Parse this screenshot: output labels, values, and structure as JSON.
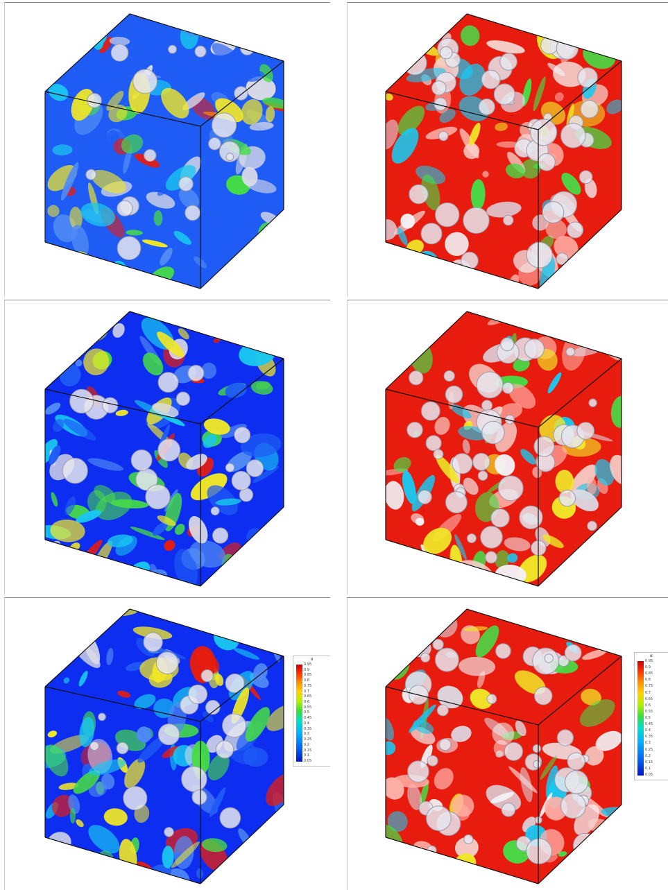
{
  "panels": [
    {
      "id": "top-left",
      "fill_level": 0.2,
      "face_base": "#1f5cf5",
      "blob_palette": "blue-dominant"
    },
    {
      "id": "top-right",
      "fill_level": 0.85,
      "face_base": "#e81c0e",
      "blob_palette": "red-dominant"
    },
    {
      "id": "middle-left",
      "fill_level": 0.3,
      "face_base": "#0d2ef0",
      "blob_palette": "blue-dominant"
    },
    {
      "id": "middle-right",
      "fill_level": 0.95,
      "face_base": "#e81c0e",
      "blob_palette": "red-dominant"
    },
    {
      "id": "bottom-left",
      "fill_level": 0.3,
      "face_base": "#0d2ef0",
      "blob_palette": "blue-dominant"
    },
    {
      "id": "bottom-right",
      "fill_level": 0.98,
      "face_base": "#e81c0e",
      "blob_palette": "red-dominant"
    }
  ],
  "colorbar_left": {
    "title": "α",
    "ticks": [
      "0.95",
      "0.9",
      "0.85",
      "0.8",
      "0.75",
      "0.7",
      "0.65",
      "0.6",
      "0.55",
      "0.5",
      "0.45",
      "0.4",
      "0.35",
      "0.3",
      "0.25",
      "0.2",
      "0.15",
      "0.1",
      "0.05"
    ]
  },
  "colorbar_right": {
    "title": "α",
    "ticks": [
      "0.95",
      "0.9",
      "0.85",
      "0.8",
      "0.75",
      "0.7",
      "0.65",
      "0.6",
      "0.55",
      "0.5",
      "0.45",
      "0.4",
      "0.35",
      "0.3",
      "0.25",
      "0.2",
      "0.15",
      "0.1",
      "0.05"
    ]
  },
  "colors": {
    "blue": "#0d2ef0",
    "cyan": "#19c8f0",
    "green": "#46dc46",
    "yellow": "#f0e628",
    "red": "#e81c0e",
    "bubble": "#dcdce6",
    "edge": "#111111"
  }
}
